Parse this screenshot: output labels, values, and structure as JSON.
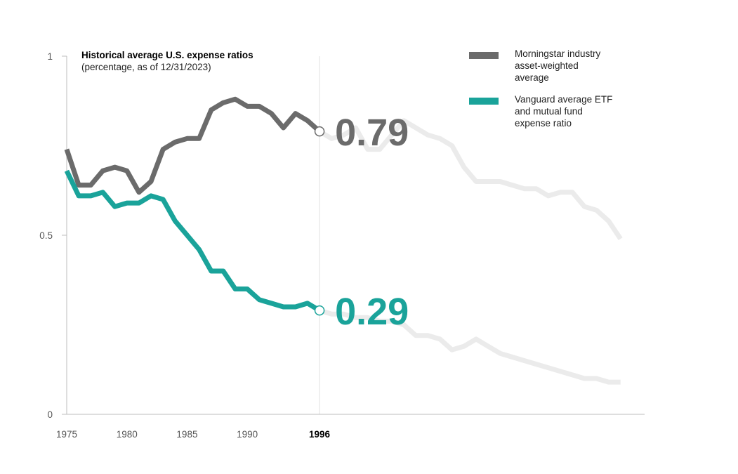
{
  "chart_data": {
    "type": "line",
    "title": "Historical average U.S. expense ratios",
    "subtitle": "(percentage, as of 12/31/2023)",
    "xlabel": "",
    "ylabel": "",
    "xlim": [
      1975,
      2023
    ],
    "ylim": [
      0,
      1
    ],
    "y_ticks": [
      {
        "value": 0,
        "label": "0"
      },
      {
        "value": 0.5,
        "label": "0.5"
      },
      {
        "value": 1,
        "label": "1"
      }
    ],
    "x_ticks": [
      {
        "value": 1975,
        "label": "1975",
        "highlight": false
      },
      {
        "value": 1980,
        "label": "1980",
        "highlight": false
      },
      {
        "value": 1985,
        "label": "1985",
        "highlight": false
      },
      {
        "value": 1990,
        "label": "1990",
        "highlight": false
      },
      {
        "value": 1996,
        "label": "1996",
        "highlight": true
      }
    ],
    "highlight_year": 1996,
    "series": [
      {
        "name": "Morningstar industry asset-weighted average",
        "color": "#6b6b6b",
        "x": [
          1975,
          1976,
          1977,
          1978,
          1979,
          1980,
          1981,
          1982,
          1983,
          1984,
          1985,
          1986,
          1987,
          1988,
          1989,
          1990,
          1991,
          1992,
          1993,
          1994,
          1995,
          1996,
          1997,
          1998,
          1999,
          2000,
          2001,
          2002,
          2003,
          2004,
          2005,
          2006,
          2007,
          2008,
          2009,
          2010,
          2011,
          2012,
          2013,
          2014,
          2015,
          2016,
          2017,
          2018,
          2019,
          2020,
          2021,
          2022,
          2023
        ],
        "values": [
          0.74,
          0.64,
          0.64,
          0.68,
          0.69,
          0.68,
          0.62,
          0.65,
          0.74,
          0.76,
          0.77,
          0.77,
          0.85,
          0.87,
          0.88,
          0.86,
          0.86,
          0.84,
          0.8,
          0.84,
          0.82,
          0.79,
          0.77,
          0.78,
          0.8,
          0.74,
          0.74,
          0.78,
          0.82,
          0.8,
          0.78,
          0.77,
          0.75,
          0.69,
          0.65,
          0.65,
          0.65,
          0.64,
          0.63,
          0.63,
          0.61,
          0.62,
          0.62,
          0.58,
          0.57,
          0.54,
          0.49,
          null,
          null
        ],
        "end_label": "0.79"
      },
      {
        "name": "Vanguard average ETF and mutual fund expense ratio",
        "color": "#1aa39a",
        "x": [
          1975,
          1976,
          1977,
          1978,
          1979,
          1980,
          1981,
          1982,
          1983,
          1984,
          1985,
          1986,
          1987,
          1988,
          1989,
          1990,
          1991,
          1992,
          1993,
          1994,
          1995,
          1996,
          1997,
          1998,
          1999,
          2000,
          2001,
          2002,
          2003,
          2004,
          2005,
          2006,
          2007,
          2008,
          2009,
          2010,
          2011,
          2012,
          2013,
          2014,
          2015,
          2016,
          2017,
          2018,
          2019,
          2020,
          2021,
          2022,
          2023
        ],
        "values": [
          0.68,
          0.61,
          0.61,
          0.62,
          0.58,
          0.59,
          0.59,
          0.61,
          0.6,
          0.54,
          0.5,
          0.46,
          0.4,
          0.4,
          0.35,
          0.35,
          0.32,
          0.31,
          0.3,
          0.3,
          0.31,
          0.29,
          0.28,
          0.28,
          0.27,
          0.27,
          0.26,
          0.26,
          0.25,
          0.22,
          0.22,
          0.21,
          0.18,
          0.19,
          0.21,
          0.19,
          0.17,
          0.16,
          0.15,
          0.14,
          0.13,
          0.12,
          0.11,
          0.1,
          0.1,
          0.09,
          0.09,
          null,
          null
        ],
        "end_label": "0.29"
      }
    ],
    "legend": [
      {
        "label": "Morningstar industry asset-weighted average",
        "color": "#6b6b6b"
      },
      {
        "label": "Vanguard average ETF and mutual fund expense ratio",
        "color": "#1aa39a"
      }
    ],
    "future_color": "#ebebeb",
    "legend_position": "top-right",
    "grid": false
  }
}
